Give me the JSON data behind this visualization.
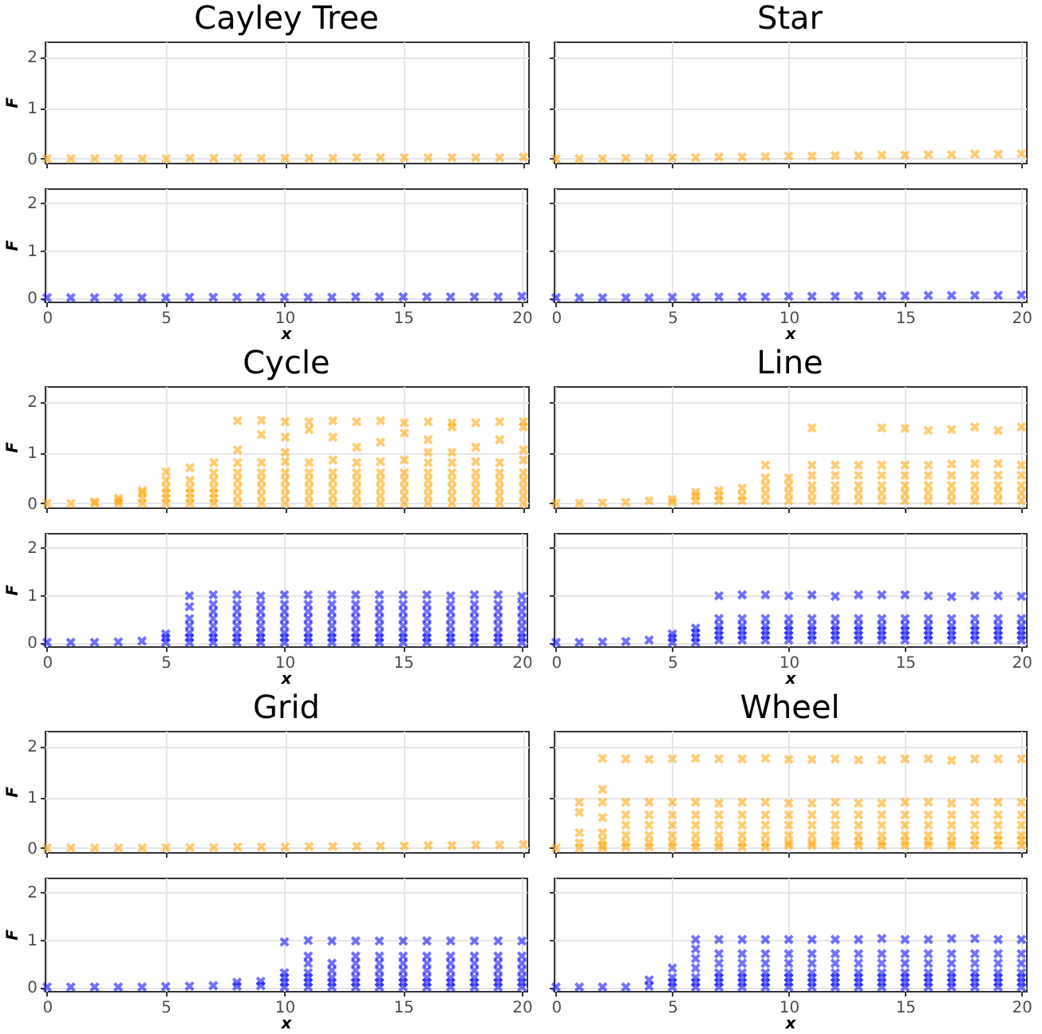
{
  "chart_data": [
    {
      "type": "scatter",
      "title": "Cayley Tree",
      "ylabel": "F",
      "xlim": [
        -0.1,
        20.2
      ],
      "ylim": [
        -0.08,
        2.3
      ],
      "xticks": [
        0,
        5,
        10,
        15,
        20
      ],
      "yticks": [
        0,
        1,
        2
      ],
      "grid": true,
      "marker": "cross",
      "tick_labels": "y",
      "series": [
        {
          "color": "#ffa500",
          "x": [
            0,
            1,
            2,
            3,
            4,
            5,
            6,
            7,
            8,
            9,
            10,
            11,
            12,
            13,
            14,
            15,
            16,
            17,
            18,
            19,
            20
          ],
          "values": [
            0,
            0,
            0,
            0,
            0,
            0,
            0.01,
            0.01,
            0.01,
            0.01,
            0.01,
            0.01,
            0.01,
            0.02,
            0.02,
            0.02,
            0.02,
            0.02,
            0.02,
            0.02,
            0.03
          ]
        }
      ]
    },
    {
      "type": "scatter",
      "xlabel": "x",
      "ylabel": "F",
      "xlim": [
        -0.1,
        20.2
      ],
      "ylim": [
        -0.08,
        2.3
      ],
      "xticks": [
        0,
        5,
        10,
        15,
        20
      ],
      "yticks": [
        0,
        1,
        2
      ],
      "grid": true,
      "marker": "cross",
      "series": [
        {
          "color": "#0000ff",
          "x": [
            0,
            1,
            2,
            3,
            4,
            5,
            6,
            7,
            8,
            9,
            10,
            11,
            12,
            13,
            14,
            15,
            16,
            17,
            18,
            19,
            20
          ],
          "values": [
            0,
            0,
            0,
            0,
            0,
            0,
            0.01,
            0.01,
            0.01,
            0.01,
            0.01,
            0.01,
            0.01,
            0.02,
            0.02,
            0.02,
            0.02,
            0.02,
            0.02,
            0.02,
            0.03
          ]
        }
      ]
    },
    {
      "type": "scatter",
      "title": "Star",
      "xlim": [
        -0.1,
        20.2
      ],
      "ylim": [
        -0.08,
        2.3
      ],
      "xticks": [
        0,
        5,
        10,
        15,
        20
      ],
      "yticks": [
        0,
        1,
        2
      ],
      "grid": true,
      "marker": "cross",
      "tick_labels": false,
      "series": [
        {
          "color": "#ffa500",
          "x": [
            0,
            1,
            2,
            3,
            4,
            5,
            6,
            7,
            8,
            9,
            10,
            11,
            12,
            13,
            14,
            15,
            16,
            17,
            18,
            19,
            20
          ],
          "values": [
            0,
            0,
            0,
            0.01,
            0.01,
            0.02,
            0.02,
            0.03,
            0.03,
            0.04,
            0.05,
            0.05,
            0.06,
            0.06,
            0.07,
            0.07,
            0.08,
            0.08,
            0.09,
            0.09,
            0.1
          ]
        }
      ]
    },
    {
      "type": "scatter",
      "xlabel": "x",
      "xlim": [
        -0.1,
        20.2
      ],
      "ylim": [
        -0.08,
        2.3
      ],
      "xticks": [
        0,
        5,
        10,
        15,
        20
      ],
      "yticks": [
        0,
        1,
        2
      ],
      "grid": true,
      "marker": "cross",
      "tick_labels": "x",
      "series": [
        {
          "color": "#0000ff",
          "x": [
            0,
            1,
            2,
            3,
            4,
            5,
            6,
            7,
            8,
            9,
            10,
            11,
            12,
            13,
            14,
            15,
            16,
            17,
            18,
            19,
            20
          ],
          "values": [
            0,
            0,
            0,
            0,
            0,
            0.01,
            0.01,
            0.02,
            0.02,
            0.02,
            0.03,
            0.03,
            0.03,
            0.04,
            0.04,
            0.04,
            0.05,
            0.05,
            0.05,
            0.05,
            0.06
          ]
        }
      ]
    },
    {
      "type": "scatter",
      "title": "Cycle",
      "ylabel": "F",
      "xlim": [
        -0.1,
        20.2
      ],
      "ylim": [
        -0.08,
        2.3
      ],
      "xticks": [
        0,
        5,
        10,
        15,
        20
      ],
      "yticks": [
        0,
        1,
        2
      ],
      "grid": true,
      "marker": "cross",
      "tick_labels": "y",
      "series": [
        {
          "color": "#ffa500",
          "x": [
            0,
            1,
            2,
            2,
            3,
            3,
            3,
            4,
            4,
            4,
            4,
            5,
            5,
            5,
            5,
            5,
            5,
            6,
            6,
            6,
            6,
            6,
            6,
            7,
            7,
            7,
            7,
            7,
            7,
            7,
            8,
            8,
            8,
            8,
            8,
            8,
            8,
            8,
            9,
            9,
            9,
            9,
            9,
            9,
            9,
            9,
            10,
            10,
            10,
            10,
            10,
            10,
            10,
            10,
            10,
            11,
            11,
            11,
            11,
            11,
            11,
            11,
            11,
            12,
            12,
            12,
            12,
            12,
            12,
            12,
            12,
            13,
            13,
            13,
            13,
            13,
            13,
            13,
            13,
            14,
            14,
            14,
            14,
            14,
            14,
            14,
            14,
            15,
            15,
            15,
            15,
            15,
            15,
            15,
            15,
            16,
            16,
            16,
            16,
            16,
            16,
            16,
            16,
            16,
            17,
            17,
            17,
            17,
            17,
            17,
            17,
            17,
            17,
            18,
            18,
            18,
            18,
            18,
            18,
            18,
            18,
            19,
            19,
            19,
            19,
            19,
            19,
            19,
            19,
            20,
            20,
            20,
            20,
            20,
            20,
            20,
            20,
            20
          ],
          "values": [
            0,
            0,
            0,
            0.03,
            0,
            0.05,
            0.1,
            0,
            0.1,
            0.2,
            0.25,
            0,
            0.1,
            0.2,
            0.3,
            0.45,
            0.62,
            0,
            0.1,
            0.2,
            0.3,
            0.45,
            0.7,
            0,
            0.1,
            0.2,
            0.3,
            0.45,
            0.6,
            0.8,
            0,
            0.15,
            0.3,
            0.45,
            0.6,
            0.8,
            1.05,
            1.62,
            0,
            0.15,
            0.3,
            0.45,
            0.6,
            0.8,
            1.35,
            1.63,
            0,
            0.15,
            0.3,
            0.45,
            0.6,
            0.82,
            1.0,
            1.3,
            1.6,
            0,
            0.15,
            0.3,
            0.45,
            0.6,
            0.8,
            1.45,
            1.6,
            0,
            0.15,
            0.3,
            0.45,
            0.6,
            0.85,
            1.3,
            1.62,
            0,
            0.15,
            0.3,
            0.45,
            0.6,
            0.8,
            1.1,
            1.6,
            0,
            0.15,
            0.3,
            0.45,
            0.6,
            0.82,
            1.2,
            1.62,
            0,
            0.15,
            0.3,
            0.45,
            0.6,
            0.85,
            1.38,
            1.58,
            0,
            0.15,
            0.3,
            0.45,
            0.6,
            0.8,
            1.0,
            1.25,
            1.6,
            0,
            0.15,
            0.3,
            0.45,
            0.6,
            0.8,
            1.0,
            1.5,
            1.58,
            0,
            0.15,
            0.3,
            0.45,
            0.6,
            0.82,
            1.1,
            1.58,
            0,
            0.15,
            0.3,
            0.45,
            0.6,
            0.8,
            1.25,
            1.6,
            0,
            0.15,
            0.3,
            0.45,
            0.6,
            0.85,
            1.05,
            1.5,
            1.6
          ]
        }
      ]
    },
    {
      "type": "scatter",
      "xlabel": "x",
      "ylabel": "F",
      "xlim": [
        -0.1,
        20.2
      ],
      "ylim": [
        -0.08,
        2.3
      ],
      "xticks": [
        0,
        5,
        10,
        15,
        20
      ],
      "yticks": [
        0,
        1,
        2
      ],
      "grid": true,
      "marker": "cross",
      "series": [
        {
          "color": "#0000ff",
          "x": [
            0,
            1,
            2,
            3,
            4,
            5,
            5,
            5,
            6,
            6,
            6,
            6,
            6,
            6,
            6,
            7,
            7,
            7,
            7,
            7,
            7,
            7,
            7,
            8,
            8,
            8,
            8,
            8,
            8,
            8,
            8,
            9,
            9,
            9,
            9,
            9,
            9,
            9,
            9,
            10,
            10,
            10,
            10,
            10,
            10,
            10,
            10,
            11,
            11,
            11,
            11,
            11,
            11,
            11,
            11,
            12,
            12,
            12,
            12,
            12,
            12,
            12,
            12,
            13,
            13,
            13,
            13,
            13,
            13,
            13,
            13,
            14,
            14,
            14,
            14,
            14,
            14,
            14,
            14,
            15,
            15,
            15,
            15,
            15,
            15,
            15,
            15,
            16,
            16,
            16,
            16,
            16,
            16,
            16,
            16,
            17,
            17,
            17,
            17,
            17,
            17,
            17,
            17,
            18,
            18,
            18,
            18,
            18,
            18,
            18,
            18,
            19,
            19,
            19,
            19,
            19,
            19,
            19,
            19,
            20,
            20,
            20,
            20,
            20,
            20,
            20,
            20
          ],
          "values": [
            0,
            0,
            0,
            0.01,
            0.03,
            0,
            0.1,
            0.18,
            0,
            0.1,
            0.2,
            0.35,
            0.5,
            0.75,
            0.98,
            0,
            0.1,
            0.2,
            0.35,
            0.5,
            0.65,
            0.8,
            1.0,
            0,
            0.1,
            0.2,
            0.35,
            0.5,
            0.65,
            0.8,
            1.0,
            0,
            0.1,
            0.2,
            0.35,
            0.5,
            0.65,
            0.8,
            0.98,
            0,
            0.1,
            0.2,
            0.35,
            0.5,
            0.65,
            0.8,
            1.0,
            0,
            0.1,
            0.2,
            0.35,
            0.5,
            0.65,
            0.8,
            1.0,
            0,
            0.1,
            0.2,
            0.35,
            0.5,
            0.65,
            0.8,
            1.0,
            0,
            0.1,
            0.2,
            0.35,
            0.5,
            0.65,
            0.8,
            1.0,
            0,
            0.1,
            0.2,
            0.35,
            0.5,
            0.65,
            0.8,
            1.0,
            0,
            0.1,
            0.2,
            0.35,
            0.5,
            0.65,
            0.8,
            1.0,
            0,
            0.1,
            0.2,
            0.35,
            0.5,
            0.65,
            0.8,
            1.0,
            0,
            0.1,
            0.2,
            0.35,
            0.5,
            0.65,
            0.8,
            0.98,
            0,
            0.1,
            0.2,
            0.35,
            0.5,
            0.65,
            0.8,
            1.0,
            0,
            0.1,
            0.2,
            0.35,
            0.5,
            0.65,
            0.8,
            1.0,
            0,
            0.1,
            0.2,
            0.35,
            0.5,
            0.65,
            0.8,
            0.97
          ]
        }
      ]
    },
    {
      "type": "scatter",
      "title": "Line",
      "xlim": [
        -0.1,
        20.2
      ],
      "ylim": [
        -0.08,
        2.3
      ],
      "xticks": [
        0,
        5,
        10,
        15,
        20
      ],
      "yticks": [
        0,
        1,
        2
      ],
      "grid": true,
      "marker": "cross",
      "tick_labels": false,
      "series": [
        {
          "color": "#ffa500",
          "x": [
            0,
            1,
            2,
            3,
            4,
            5,
            5,
            6,
            6,
            6,
            7,
            7,
            7,
            8,
            8,
            8,
            9,
            9,
            9,
            9,
            9,
            10,
            10,
            10,
            10,
            11,
            11,
            11,
            11,
            11,
            11,
            12,
            12,
            12,
            12,
            12,
            13,
            13,
            13,
            13,
            13,
            14,
            14,
            14,
            14,
            14,
            14,
            15,
            15,
            15,
            15,
            15,
            15,
            16,
            16,
            16,
            16,
            16,
            16,
            17,
            17,
            17,
            17,
            17,
            17,
            18,
            18,
            18,
            18,
            18,
            18,
            19,
            19,
            19,
            19,
            19,
            19,
            20,
            20,
            20,
            20,
            20,
            20
          ],
          "values": [
            0,
            0,
            0.01,
            0.02,
            0.05,
            0.02,
            0.08,
            0.05,
            0.15,
            0.22,
            0.05,
            0.15,
            0.25,
            0.05,
            0.15,
            0.3,
            0.05,
            0.2,
            0.35,
            0.5,
            0.75,
            0.05,
            0.2,
            0.35,
            0.5,
            0.05,
            0.2,
            0.35,
            0.55,
            0.75,
            1.48,
            0.05,
            0.2,
            0.35,
            0.55,
            0.75,
            0.05,
            0.2,
            0.35,
            0.55,
            0.75,
            0.05,
            0.2,
            0.35,
            0.55,
            0.75,
            1.48,
            0.05,
            0.2,
            0.35,
            0.55,
            0.75,
            1.47,
            0.05,
            0.2,
            0.35,
            0.55,
            0.75,
            1.43,
            0.05,
            0.2,
            0.35,
            0.55,
            0.77,
            1.45,
            0.05,
            0.2,
            0.35,
            0.55,
            0.78,
            1.5,
            0.05,
            0.2,
            0.35,
            0.55,
            0.78,
            1.43,
            0.05,
            0.2,
            0.35,
            0.55,
            0.75,
            1.5
          ]
        }
      ]
    },
    {
      "type": "scatter",
      "xlabel": "x",
      "xlim": [
        -0.1,
        20.2
      ],
      "ylim": [
        -0.08,
        2.3
      ],
      "xticks": [
        0,
        5,
        10,
        15,
        20
      ],
      "yticks": [
        0,
        1,
        2
      ],
      "grid": true,
      "marker": "cross",
      "tick_labels": "x",
      "series": [
        {
          "color": "#0000ff",
          "x": [
            0,
            1,
            2,
            3,
            4,
            5,
            5,
            5,
            6,
            6,
            6,
            6,
            7,
            7,
            7,
            7,
            7,
            7,
            8,
            8,
            8,
            8,
            8,
            8,
            9,
            9,
            9,
            9,
            9,
            9,
            10,
            10,
            10,
            10,
            10,
            10,
            11,
            11,
            11,
            11,
            11,
            11,
            12,
            12,
            12,
            12,
            12,
            12,
            13,
            13,
            13,
            13,
            13,
            13,
            14,
            14,
            14,
            14,
            14,
            14,
            15,
            15,
            15,
            15,
            15,
            15,
            16,
            16,
            16,
            16,
            16,
            16,
            17,
            17,
            17,
            17,
            17,
            17,
            18,
            18,
            18,
            18,
            18,
            18,
            19,
            19,
            19,
            19,
            19,
            19,
            20,
            20,
            20,
            20,
            20,
            20
          ],
          "values": [
            0,
            0,
            0.01,
            0.02,
            0.05,
            0,
            0.1,
            0.18,
            0,
            0.1,
            0.2,
            0.3,
            0.05,
            0.15,
            0.25,
            0.35,
            0.5,
            0.98,
            0.05,
            0.15,
            0.25,
            0.35,
            0.5,
            1.0,
            0.05,
            0.15,
            0.25,
            0.35,
            0.5,
            1.0,
            0.05,
            0.15,
            0.25,
            0.35,
            0.5,
            0.98,
            0.05,
            0.15,
            0.25,
            0.35,
            0.5,
            1.0,
            0.05,
            0.15,
            0.25,
            0.35,
            0.5,
            0.97,
            0.05,
            0.15,
            0.25,
            0.35,
            0.5,
            1.0,
            0.05,
            0.15,
            0.25,
            0.35,
            0.5,
            1.0,
            0.05,
            0.15,
            0.25,
            0.35,
            0.5,
            1.0,
            0.05,
            0.15,
            0.25,
            0.35,
            0.5,
            0.98,
            0.05,
            0.15,
            0.25,
            0.35,
            0.5,
            0.96,
            0.05,
            0.15,
            0.25,
            0.35,
            0.5,
            0.98,
            0.05,
            0.15,
            0.25,
            0.35,
            0.5,
            0.98,
            0.05,
            0.15,
            0.25,
            0.35,
            0.5,
            0.97
          ]
        }
      ]
    },
    {
      "type": "scatter",
      "title": "Grid",
      "ylabel": "F",
      "xlim": [
        -0.1,
        20.2
      ],
      "ylim": [
        -0.08,
        2.3
      ],
      "xticks": [
        0,
        5,
        10,
        15,
        20
      ],
      "yticks": [
        0,
        1,
        2
      ],
      "grid": true,
      "marker": "cross",
      "tick_labels": "y",
      "series": [
        {
          "color": "#ffa500",
          "x": [
            0,
            1,
            2,
            3,
            4,
            5,
            6,
            7,
            8,
            9,
            10,
            11,
            12,
            13,
            14,
            15,
            16,
            17,
            18,
            19,
            20
          ],
          "values": [
            0,
            0,
            0,
            0,
            0,
            0.01,
            0.01,
            0.01,
            0.02,
            0.02,
            0.02,
            0.03,
            0.03,
            0.03,
            0.04,
            0.04,
            0.05,
            0.05,
            0.06,
            0.06,
            0.07
          ]
        }
      ]
    },
    {
      "type": "scatter",
      "xlabel": "x",
      "ylabel": "F",
      "xlim": [
        -0.1,
        20.2
      ],
      "ylim": [
        -0.08,
        2.3
      ],
      "xticks": [
        0,
        5,
        10,
        15,
        20
      ],
      "yticks": [
        0,
        1,
        2
      ],
      "grid": true,
      "marker": "cross",
      "series": [
        {
          "color": "#0000ff",
          "x": [
            0,
            1,
            2,
            3,
            4,
            5,
            6,
            7,
            8,
            8,
            9,
            9,
            10,
            10,
            10,
            10,
            10,
            11,
            11,
            11,
            11,
            11,
            11,
            11,
            12,
            12,
            12,
            12,
            12,
            12,
            13,
            13,
            13,
            13,
            13,
            13,
            13,
            14,
            14,
            14,
            14,
            14,
            14,
            14,
            15,
            15,
            15,
            15,
            15,
            15,
            15,
            16,
            16,
            16,
            16,
            16,
            16,
            16,
            17,
            17,
            17,
            17,
            17,
            17,
            17,
            18,
            18,
            18,
            18,
            18,
            18,
            18,
            19,
            19,
            19,
            19,
            19,
            19,
            19,
            20,
            20,
            20,
            20,
            20,
            20,
            20
          ],
          "values": [
            0,
            0,
            0,
            0,
            0,
            0.01,
            0.02,
            0.03,
            0.02,
            0.1,
            0.03,
            0.12,
            0,
            0.1,
            0.2,
            0.3,
            0.95,
            0,
            0.1,
            0.2,
            0.3,
            0.5,
            0.65,
            0.98,
            0,
            0.1,
            0.2,
            0.35,
            0.5,
            0.97,
            0,
            0.1,
            0.2,
            0.35,
            0.5,
            0.65,
            0.97,
            0,
            0.1,
            0.2,
            0.35,
            0.5,
            0.65,
            0.97,
            0,
            0.1,
            0.2,
            0.35,
            0.5,
            0.65,
            0.97,
            0,
            0.1,
            0.2,
            0.35,
            0.5,
            0.65,
            0.97,
            0,
            0.1,
            0.2,
            0.35,
            0.5,
            0.65,
            0.97,
            0,
            0.1,
            0.2,
            0.35,
            0.5,
            0.65,
            0.97,
            0,
            0.1,
            0.2,
            0.35,
            0.5,
            0.65,
            0.97,
            0,
            0.1,
            0.2,
            0.35,
            0.5,
            0.65,
            0.97
          ]
        }
      ]
    },
    {
      "type": "scatter",
      "title": "Wheel",
      "xlim": [
        -0.1,
        20.2
      ],
      "ylim": [
        -0.08,
        2.3
      ],
      "xticks": [
        0,
        5,
        10,
        15,
        20
      ],
      "yticks": [
        0,
        1,
        2
      ],
      "grid": true,
      "marker": "cross",
      "tick_labels": false,
      "series": [
        {
          "color": "#ffa500",
          "x": [
            0,
            1,
            1,
            1,
            1,
            1,
            2,
            2,
            2,
            2,
            2,
            2,
            2,
            2,
            3,
            3,
            3,
            3,
            3,
            3,
            3,
            4,
            4,
            4,
            4,
            4,
            4,
            4,
            5,
            5,
            5,
            5,
            5,
            5,
            5,
            6,
            6,
            6,
            6,
            6,
            6,
            6,
            7,
            7,
            7,
            7,
            7,
            7,
            7,
            8,
            8,
            8,
            8,
            8,
            8,
            8,
            9,
            9,
            9,
            9,
            9,
            9,
            9,
            10,
            10,
            10,
            10,
            10,
            10,
            10,
            11,
            11,
            11,
            11,
            11,
            11,
            11,
            12,
            12,
            12,
            12,
            12,
            12,
            12,
            13,
            13,
            13,
            13,
            13,
            13,
            13,
            14,
            14,
            14,
            14,
            14,
            14,
            14,
            15,
            15,
            15,
            15,
            15,
            15,
            15,
            16,
            16,
            16,
            16,
            16,
            16,
            16,
            17,
            17,
            17,
            17,
            17,
            17,
            17,
            18,
            18,
            18,
            18,
            18,
            18,
            18,
            19,
            19,
            19,
            19,
            19,
            19,
            19,
            20,
            20,
            20,
            20,
            20,
            20,
            20
          ],
          "values": [
            0,
            0,
            0.1,
            0.3,
            0.7,
            0.9,
            0,
            0.05,
            0.15,
            0.3,
            0.6,
            0.9,
            1.15,
            1.76,
            0.02,
            0.1,
            0.25,
            0.45,
            0.65,
            0.9,
            1.75,
            0.02,
            0.1,
            0.25,
            0.45,
            0.65,
            0.9,
            1.74,
            0.02,
            0.1,
            0.25,
            0.45,
            0.65,
            0.9,
            1.75,
            0.02,
            0.1,
            0.25,
            0.45,
            0.65,
            0.9,
            1.76,
            0.02,
            0.1,
            0.25,
            0.45,
            0.65,
            0.88,
            1.75,
            0.02,
            0.1,
            0.25,
            0.45,
            0.65,
            0.9,
            1.75,
            0.02,
            0.1,
            0.25,
            0.45,
            0.65,
            0.9,
            1.76,
            0.05,
            0.1,
            0.25,
            0.45,
            0.65,
            0.88,
            1.74,
            0.05,
            0.1,
            0.25,
            0.45,
            0.65,
            0.88,
            1.74,
            0.05,
            0.12,
            0.25,
            0.45,
            0.65,
            0.9,
            1.75,
            0.05,
            0.12,
            0.25,
            0.45,
            0.65,
            0.88,
            1.73,
            0.05,
            0.12,
            0.25,
            0.45,
            0.65,
            0.88,
            1.73,
            0.05,
            0.12,
            0.25,
            0.45,
            0.65,
            0.9,
            1.75,
            0.05,
            0.12,
            0.25,
            0.45,
            0.65,
            0.9,
            1.75,
            0.05,
            0.12,
            0.25,
            0.45,
            0.65,
            0.88,
            1.72,
            0.05,
            0.15,
            0.25,
            0.45,
            0.65,
            0.9,
            1.75,
            0.05,
            0.15,
            0.25,
            0.45,
            0.65,
            0.9,
            1.75,
            0.05,
            0.15,
            0.25,
            0.45,
            0.65,
            0.9,
            1.75
          ]
        }
      ]
    },
    {
      "type": "scatter",
      "xlabel": "x",
      "xlim": [
        -0.1,
        20.2
      ],
      "ylim": [
        -0.08,
        2.3
      ],
      "xticks": [
        0,
        5,
        10,
        15,
        20
      ],
      "yticks": [
        0,
        1,
        2
      ],
      "grid": true,
      "marker": "cross",
      "tick_labels": "x",
      "series": [
        {
          "color": "#0000ff",
          "x": [
            0,
            1,
            2,
            3,
            4,
            4,
            5,
            5,
            5,
            5,
            6,
            6,
            6,
            6,
            6,
            6,
            6,
            7,
            7,
            7,
            7,
            7,
            7,
            7,
            8,
            8,
            8,
            8,
            8,
            8,
            8,
            9,
            9,
            9,
            9,
            9,
            9,
            9,
            10,
            10,
            10,
            10,
            10,
            10,
            10,
            11,
            11,
            11,
            11,
            11,
            11,
            11,
            12,
            12,
            12,
            12,
            12,
            12,
            12,
            13,
            13,
            13,
            13,
            13,
            13,
            13,
            14,
            14,
            14,
            14,
            14,
            14,
            14,
            15,
            15,
            15,
            15,
            15,
            15,
            15,
            16,
            16,
            16,
            16,
            16,
            16,
            16,
            17,
            17,
            17,
            17,
            17,
            17,
            17,
            18,
            18,
            18,
            18,
            18,
            18,
            18,
            19,
            19,
            19,
            19,
            19,
            19,
            19,
            20,
            20,
            20,
            20,
            20,
            20,
            20
          ],
          "values": [
            0,
            0,
            0,
            0,
            0.02,
            0.15,
            0,
            0.1,
            0.2,
            0.4,
            0,
            0.1,
            0.2,
            0.4,
            0.6,
            0.8,
            1.0,
            0,
            0.1,
            0.2,
            0.3,
            0.5,
            0.7,
            1.0,
            0,
            0.1,
            0.2,
            0.3,
            0.5,
            0.7,
            1.0,
            0,
            0.1,
            0.2,
            0.3,
            0.5,
            0.7,
            1.0,
            0,
            0.1,
            0.2,
            0.3,
            0.5,
            0.7,
            1.0,
            0,
            0.1,
            0.2,
            0.3,
            0.5,
            0.7,
            1.0,
            0,
            0.1,
            0.2,
            0.3,
            0.5,
            0.7,
            1.0,
            0,
            0.1,
            0.2,
            0.3,
            0.5,
            0.7,
            1.0,
            0,
            0.1,
            0.2,
            0.3,
            0.5,
            0.7,
            1.02,
            0,
            0.1,
            0.2,
            0.3,
            0.5,
            0.7,
            1.0,
            0,
            0.1,
            0.2,
            0.3,
            0.5,
            0.7,
            1.0,
            0,
            0.1,
            0.2,
            0.3,
            0.5,
            0.7,
            1.02,
            0,
            0.1,
            0.2,
            0.3,
            0.5,
            0.7,
            1.02,
            0,
            0.1,
            0.2,
            0.3,
            0.5,
            0.7,
            1.0,
            0,
            0.1,
            0.2,
            0.3,
            0.5,
            0.7,
            1.0
          ]
        }
      ]
    }
  ]
}
